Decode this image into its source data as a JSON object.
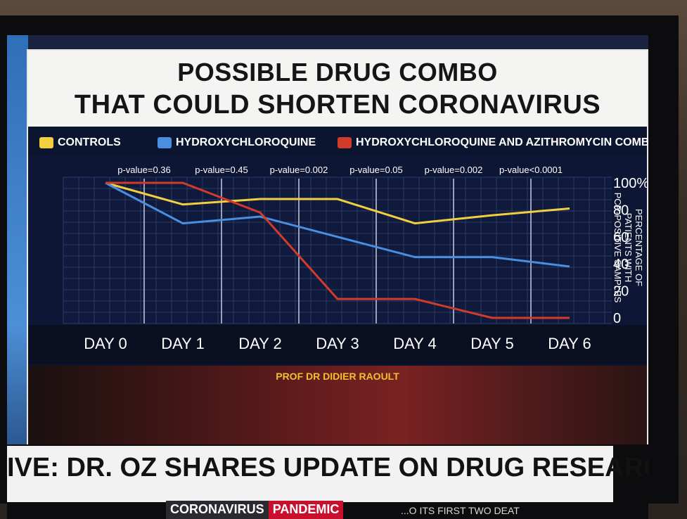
{
  "graphic": {
    "title_line1": "POSSIBLE DRUG COMBO",
    "title_line2": "THAT COULD SHORTEN CORONAVIRUS",
    "credit": "PROF DR DIDIER RAOULT"
  },
  "colors": {
    "controls": "#f2cf3e",
    "hcq": "#4a8ee0",
    "combo": "#d23a2a",
    "grid": "#2e3a66",
    "panel": "#101a3c"
  },
  "chart_data": {
    "type": "line",
    "title": "POSSIBLE DRUG COMBO THAT COULD SHORTEN CORONAVIRUS",
    "categories": [
      "DAY 0",
      "DAY 1",
      "DAY 2",
      "DAY 3",
      "DAY 4",
      "DAY 5",
      "DAY 6"
    ],
    "series": [
      {
        "name": "CONTROLS",
        "values": [
          100,
          84,
          88,
          88,
          70,
          76,
          81
        ]
      },
      {
        "name": "HYDROXYCHLOROQUINE",
        "values": [
          100,
          70,
          75,
          60,
          45,
          45,
          38
        ]
      },
      {
        "name": "HYDROXYCHLOROQUINE AND AZITHROMYCIN COMBINATION",
        "values": [
          100,
          100,
          78,
          14,
          14,
          0,
          0
        ]
      }
    ],
    "p_values": [
      "p-value=0.36",
      "p-value=0.45",
      "p-value=0.002",
      "p-value=0.05",
      "p-value=0.002",
      "p-value<0.0001"
    ],
    "yticks": [
      "100%",
      "80",
      "60",
      "40",
      "20",
      "0"
    ],
    "ylabel_line1": "PERCENTAGE OF",
    "ylabel_line2": "PATIENTS WITH",
    "ylabel_line3": "PCR-POSITIVE SAMPLES",
    "ylim": [
      0,
      100
    ],
    "legend": "top",
    "grid": true
  },
  "ticker": {
    "headline": "IVE: DR. OZ SHARES UPDATE ON DRUG RESEARCH",
    "bug_part1": "CORONAVIRUS",
    "bug_part2": "PANDEMIC",
    "sub": "...O ITS FIRST TWO DEAT"
  }
}
